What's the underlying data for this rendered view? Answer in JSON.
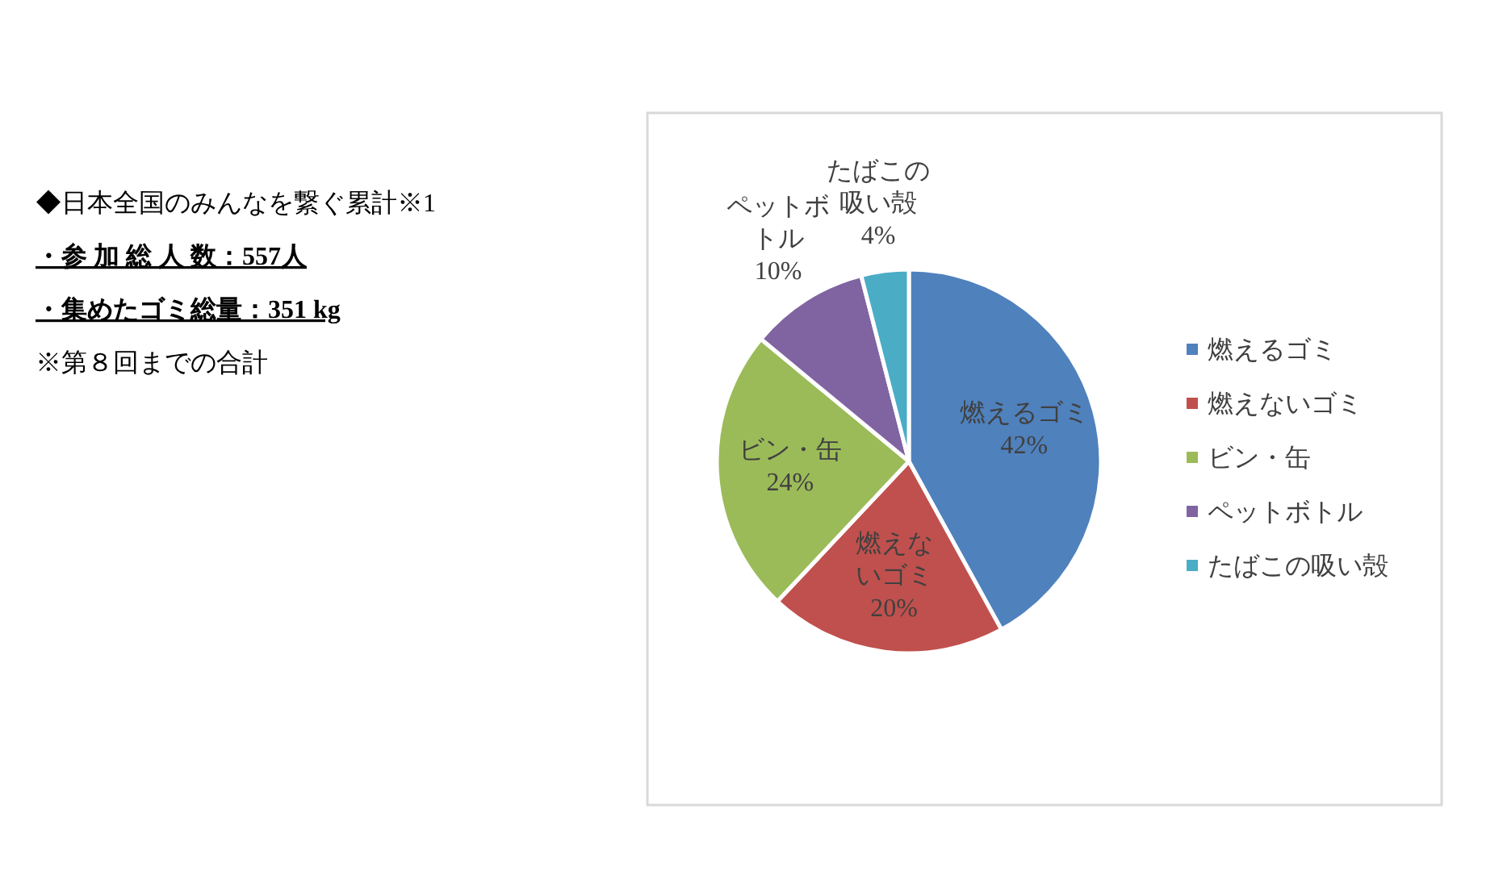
{
  "chart_data": {
    "type": "pie",
    "categories": [
      "燃えるゴミ",
      "燃えないゴミ",
      "ビン・缶",
      "ペットボトル",
      "たばこの吸い殻"
    ],
    "values": [
      42,
      20,
      24,
      10,
      4
    ],
    "colors": [
      "#4f81bd",
      "#c0504d",
      "#9bbb59",
      "#8064a2",
      "#4bacc6"
    ],
    "value_labels": [
      "42%",
      "20%",
      "24%",
      "10%",
      "4%"
    ],
    "data_labels": true,
    "legend": "right",
    "annotations": [
      "◆日本全国のみんなを繋ぐ累計※1",
      "・参 加 総 人 数：557人",
      "・集めたゴミ総量：351 kg",
      "※第８回までの合計"
    ]
  }
}
